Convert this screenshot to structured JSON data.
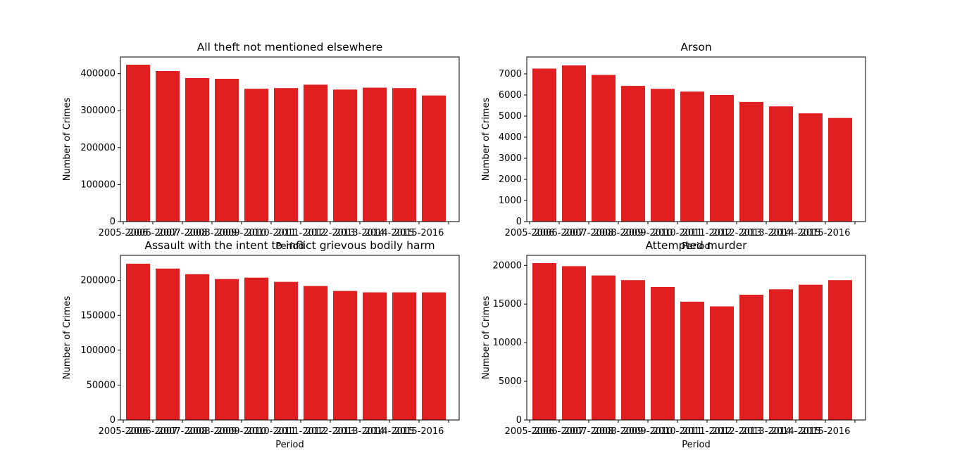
{
  "chart_data": [
    {
      "type": "bar",
      "title": "All theft not mentioned elsewhere",
      "xlabel": "Period",
      "ylabel": "Number of Crimes",
      "categories": [
        "2005-2006",
        "2006-2007",
        "2007-2008",
        "2008-2009",
        "2009-2010",
        "2010-2011",
        "2011-2012",
        "2012-2013",
        "2013-2014",
        "2014-2015",
        "2015-2016"
      ],
      "values": [
        424000,
        407000,
        388000,
        386000,
        359000,
        361000,
        370000,
        357000,
        362000,
        361000,
        341000
      ],
      "ylim": [
        0,
        445000
      ],
      "yticks": [
        0,
        100000,
        200000,
        300000,
        400000
      ],
      "color": "#e02020",
      "grid": false
    },
    {
      "type": "bar",
      "title": "Arson",
      "xlabel": "Period",
      "ylabel": "Number of Crimes",
      "categories": [
        "2005-2006",
        "2006-2007",
        "2007-2008",
        "2008-2009",
        "2009-2010",
        "2010-2011",
        "2011-2012",
        "2012-2013",
        "2013-2014",
        "2014-2015",
        "2015-2016"
      ],
      "values": [
        7250,
        7400,
        6950,
        6430,
        6290,
        6160,
        6000,
        5670,
        5460,
        5130,
        4910
      ],
      "ylim": [
        0,
        7800
      ],
      "yticks": [
        0,
        1000,
        2000,
        3000,
        4000,
        5000,
        6000,
        7000
      ],
      "color": "#e02020",
      "grid": false
    },
    {
      "type": "bar",
      "title": "Assault with the intent to inflict grievous bodily harm",
      "xlabel": "Period",
      "ylabel": "Number of Crimes",
      "categories": [
        "2005-2006",
        "2006-2007",
        "2007-2008",
        "2008-2009",
        "2009-2010",
        "2010-2011",
        "2011-2012",
        "2012-2013",
        "2013-2014",
        "2014-2015",
        "2015-2016"
      ],
      "values": [
        224000,
        217000,
        209000,
        202000,
        204000,
        198000,
        192000,
        185000,
        183000,
        183000,
        183000
      ],
      "ylim": [
        0,
        236000
      ],
      "yticks": [
        0,
        50000,
        100000,
        150000,
        200000
      ],
      "color": "#e02020",
      "grid": false
    },
    {
      "type": "bar",
      "title": "Attempted murder",
      "xlabel": "Period",
      "ylabel": "Number of Crimes",
      "categories": [
        "2005-2006",
        "2006-2007",
        "2007-2008",
        "2008-2009",
        "2009-2010",
        "2010-2011",
        "2011-2012",
        "2012-2013",
        "2013-2014",
        "2014-2015",
        "2015-2016"
      ],
      "values": [
        20300,
        19900,
        18700,
        18100,
        17200,
        15300,
        14700,
        16200,
        16900,
        17500,
        18100
      ],
      "ylim": [
        0,
        21300
      ],
      "yticks": [
        0,
        5000,
        10000,
        15000,
        20000
      ],
      "color": "#e02020",
      "grid": false
    }
  ]
}
